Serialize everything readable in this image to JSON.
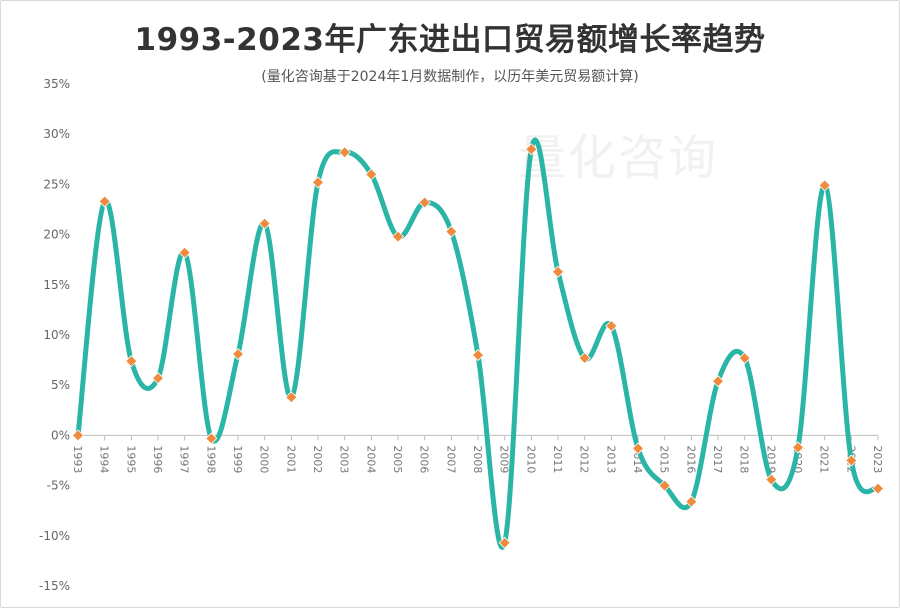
{
  "title": "1993-2023年广东进出口贸易额增长率趋势",
  "subtitle": "(量化咨询基于2024年1月数据制作，以历年美元贸易额计算)",
  "watermark": "量化咨询",
  "colors": {
    "line": "#2bb5a6",
    "marker": "#f08a3c",
    "axis": "#bfbfbf"
  },
  "chart_data": {
    "type": "line",
    "title": "1993-2023年广东进出口贸易额增长率趋势",
    "subtitle": "(量化咨询基于2024年1月数据制作，以历年美元贸易额计算)",
    "ylim": [
      -15,
      35
    ],
    "ytick_step": 5,
    "ytick_labels": [
      "35%",
      "30%",
      "25%",
      "20%",
      "15%",
      "10%",
      "5%",
      "0%",
      "-5%",
      "-10%",
      "-15%"
    ],
    "grid": false,
    "legend": "none",
    "x": [
      "1993",
      "1994",
      "1995",
      "1996",
      "1997",
      "1998",
      "1999",
      "2000",
      "2001",
      "2002",
      "2003",
      "2004",
      "2005",
      "2006",
      "2007",
      "2008",
      "2009",
      "2010",
      "2011",
      "2012",
      "2013",
      "2014",
      "2015",
      "2016",
      "2017",
      "2018",
      "2019",
      "2020",
      "2021",
      "2022",
      "2023"
    ],
    "series": [
      {
        "values": [
          0,
          23.3,
          7.4,
          5.7,
          18.2,
          -0.3,
          8.1,
          21.1,
          3.8,
          25.2,
          28.2,
          26.0,
          19.8,
          23.2,
          20.3,
          8.0,
          -10.7,
          28.5,
          16.3,
          7.7,
          10.9,
          -1.3,
          -5.0,
          -6.6,
          5.4,
          7.7,
          -4.4,
          -1.2,
          24.9,
          -2.5,
          -5.3
        ]
      }
    ]
  }
}
